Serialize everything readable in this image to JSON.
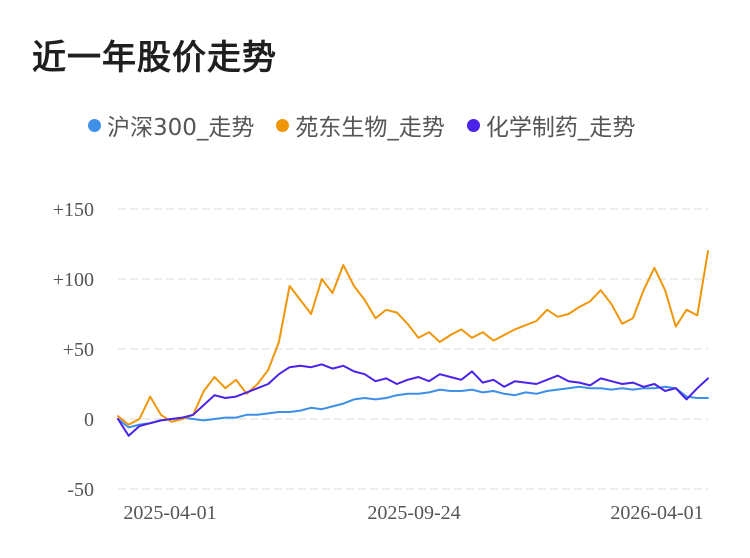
{
  "chart_data": {
    "type": "line",
    "title": "近一年股价走势",
    "ylim": [
      -50,
      150
    ],
    "yticks": [
      "+150",
      "+100",
      "+50",
      "0",
      "-50"
    ],
    "ytick_values": [
      150,
      100,
      50,
      0,
      -50
    ],
    "xticks": [
      "2025-04-01",
      "2025-09-24",
      "2026-04-01"
    ],
    "legend_position": "top",
    "grid": true,
    "x": [
      "2025-03-21",
      "2025-03-28",
      "2025-04-04",
      "2025-04-11",
      "2025-04-18",
      "2025-04-25",
      "2025-05-02",
      "2025-05-09",
      "2025-05-16",
      "2025-05-23",
      "2025-05-30",
      "2025-06-06",
      "2025-06-13",
      "2025-06-20",
      "2025-06-27",
      "2025-07-04",
      "2025-07-11",
      "2025-07-18",
      "2025-07-25",
      "2025-08-01",
      "2025-08-08",
      "2025-08-15",
      "2025-08-22",
      "2025-08-29",
      "2025-09-05",
      "2025-09-12",
      "2025-09-19",
      "2025-09-26",
      "2025-10-03",
      "2025-10-10",
      "2025-10-17",
      "2025-10-24",
      "2025-10-31",
      "2025-11-07",
      "2025-11-14",
      "2025-11-21",
      "2025-11-28",
      "2025-12-05",
      "2025-12-12",
      "2025-12-19",
      "2025-12-26",
      "2026-01-02",
      "2026-01-09",
      "2026-01-16",
      "2026-01-23",
      "2026-01-30",
      "2026-02-06",
      "2026-02-13",
      "2026-02-20",
      "2026-02-27",
      "2026-03-06",
      "2026-03-13",
      "2026-03-20",
      "2026-03-27",
      "2026-04-03",
      "2026-04-10"
    ],
    "series": [
      {
        "name": "沪深300_走势",
        "color": "#3d8fe8",
        "values": [
          0,
          -6,
          -4,
          -3,
          -1,
          0,
          1,
          0,
          -1,
          0,
          1,
          1,
          3,
          3,
          4,
          5,
          5,
          6,
          8,
          7,
          9,
          11,
          14,
          15,
          14,
          15,
          17,
          18,
          18,
          19,
          21,
          20,
          20,
          21,
          19,
          20,
          18,
          17,
          19,
          18,
          20,
          21,
          22,
          23,
          22,
          22,
          21,
          22,
          21,
          22,
          22,
          23,
          22,
          16,
          15,
          15
        ]
      },
      {
        "name": "苑东生物_走势",
        "color": "#f0960a",
        "values": [
          2,
          -4,
          0,
          16,
          3,
          -2,
          0,
          3,
          20,
          30,
          22,
          28,
          18,
          25,
          35,
          55,
          95,
          85,
          75,
          100,
          90,
          110,
          95,
          85,
          72,
          78,
          76,
          68,
          58,
          62,
          55,
          60,
          64,
          58,
          62,
          56,
          60,
          64,
          67,
          70,
          78,
          73,
          75,
          80,
          84,
          92,
          82,
          68,
          72,
          92,
          108,
          92,
          66,
          78,
          74,
          120
        ]
      },
      {
        "name": "化学制药_走势",
        "color": "#4b22e8",
        "values": [
          0,
          -12,
          -5,
          -3,
          -1,
          0,
          1,
          3,
          10,
          17,
          15,
          16,
          19,
          22,
          25,
          32,
          37,
          38,
          37,
          39,
          36,
          38,
          34,
          32,
          27,
          29,
          25,
          28,
          30,
          27,
          32,
          30,
          28,
          34,
          26,
          28,
          23,
          27,
          26,
          25,
          28,
          31,
          27,
          26,
          24,
          29,
          27,
          25,
          26,
          23,
          25,
          20,
          22,
          14,
          22,
          29
        ]
      }
    ]
  }
}
